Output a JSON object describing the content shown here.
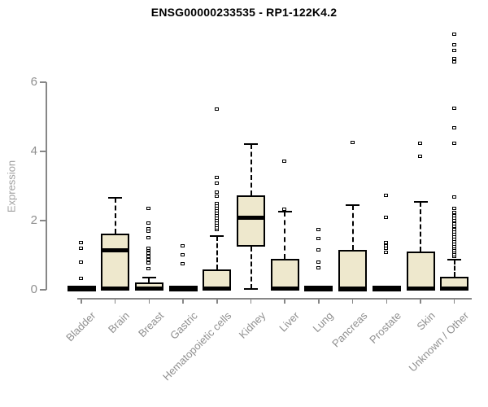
{
  "page": {
    "background": "#ffffff"
  },
  "chart_data": {
    "type": "boxplot",
    "title": "ENSG00000233535 - RP1-122K4.2",
    "ylabel": "Expression",
    "xlabel": "",
    "yticks": [
      0,
      2,
      4,
      6
    ],
    "ylim": [
      0,
      7.7
    ],
    "grid": false,
    "legend": "none",
    "categories": [
      "Bladder",
      "Brain",
      "Breast",
      "Gastric",
      "Hematopoietic cells",
      "Kidney",
      "Liver",
      "Lung",
      "Pancreas",
      "Prostate",
      "Skin",
      "Unknown / Other"
    ],
    "boxes": [
      {
        "category": "Bladder",
        "flat": true,
        "median": 0,
        "outliers": [
          0.32,
          0.78,
          1.18,
          1.36
        ]
      },
      {
        "category": "Brain",
        "q1": 0,
        "median": 1.15,
        "q3": 1.62,
        "whisker_high": 2.65,
        "outliers": []
      },
      {
        "category": "Breast",
        "q1": 0,
        "median": 0.04,
        "q3": 0.22,
        "whisker_high": 0.36,
        "outliers": [
          0.61,
          0.77,
          0.86,
          0.95,
          1.04,
          1.13,
          1.2,
          1.49,
          1.69,
          1.75,
          1.92,
          2.34
        ]
      },
      {
        "category": "Gastric",
        "flat": true,
        "median": 0,
        "outliers": [
          0.73,
          1.01,
          1.27
        ]
      },
      {
        "category": "Hematopoietic cells",
        "q1": 0,
        "median": 0.03,
        "q3": 0.6,
        "whisker_high": 1.55,
        "outliers": [
          1.72,
          1.78,
          1.85,
          1.92,
          1.99,
          2.06,
          2.13,
          2.2,
          2.27,
          2.34,
          2.41,
          2.49,
          2.69,
          2.81,
          3.06,
          3.24,
          5.22
        ]
      },
      {
        "category": "Kidney",
        "q1": 1.24,
        "median": 2.09,
        "q3": 2.73,
        "whisker_high": 4.22,
        "whisker_low": 0.02,
        "outliers": []
      },
      {
        "category": "Liver",
        "q1": 0,
        "median": 0.03,
        "q3": 0.89,
        "whisker_high": 2.25,
        "outliers": [
          2.32,
          3.71
        ]
      },
      {
        "category": "Lung",
        "flat": true,
        "median": 0,
        "outliers": [
          0.63,
          0.8,
          1.13,
          1.48,
          1.74
        ]
      },
      {
        "category": "Pancreas",
        "q1": 0,
        "median": 0.02,
        "q3": 1.16,
        "whisker_high": 2.44,
        "outliers": [
          4.25
        ]
      },
      {
        "category": "Prostate",
        "flat": true,
        "median": 0,
        "outliers": [
          1.08,
          1.18,
          1.27,
          1.36,
          2.08,
          2.71
        ]
      },
      {
        "category": "Skin",
        "q1": 0,
        "median": 0.03,
        "q3": 1.1,
        "whisker_high": 2.55,
        "outliers": [
          3.84,
          4.22
        ]
      },
      {
        "category": "Unknown / Other",
        "q1": 0,
        "median": 0.03,
        "q3": 0.38,
        "whisker_high": 0.87,
        "outliers": [
          0.95,
          1.0,
          1.06,
          1.12,
          1.18,
          1.24,
          1.3,
          1.37,
          1.44,
          1.51,
          1.58,
          1.66,
          1.74,
          1.82,
          1.9,
          1.98,
          2.06,
          2.14,
          2.22,
          2.34,
          2.67,
          4.22,
          4.67,
          5.24,
          6.58,
          6.67,
          6.9,
          7.08,
          7.37
        ]
      }
    ],
    "colors": {
      "box_fill": "#EEE8CD",
      "box_border": "#000000",
      "axis": "#878787",
      "tick_labels": "#8f8f8f",
      "axis_title": "#a0a0a0",
      "title_color": "#000000",
      "background": "#ffffff"
    }
  }
}
